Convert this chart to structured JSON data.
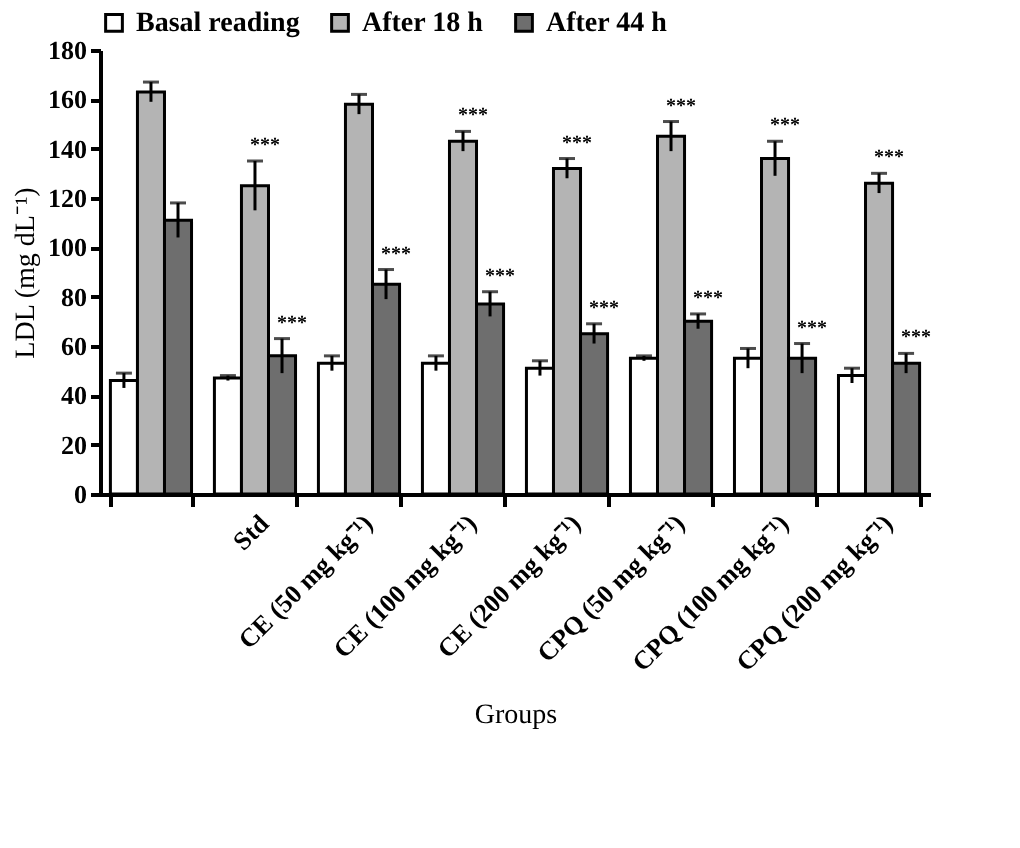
{
  "chart_data": {
    "type": "bar",
    "xlabel": "Groups",
    "ylabel": "LDL (mg dL⁻¹)",
    "categories": [
      null,
      "Std",
      "CE (50 mg kg⁻¹)",
      "CE (100 mg kg⁻¹)",
      "CE (200 mg kg⁻¹)",
      "CPQ (50 mg kg⁻¹)",
      "CPQ (100 mg kg⁻¹)",
      "CPQ (200 mg kg⁻¹)"
    ],
    "series": [
      {
        "name": "Basal reading",
        "color": "#ffffff",
        "values": [
          46,
          47,
          53,
          53,
          51,
          55,
          55,
          48
        ],
        "errors": [
          3,
          1,
          3,
          3,
          3,
          1,
          4,
          3
        ]
      },
      {
        "name": "After 18 h",
        "color": "#b4b4b4",
        "values": [
          163,
          125,
          158,
          143,
          132,
          145,
          136,
          126
        ],
        "errors": [
          4,
          10,
          4,
          4,
          4,
          6,
          7,
          4
        ]
      },
      {
        "name": "After 44 h",
        "color": "#6e6e6e",
        "values": [
          111,
          56,
          85,
          77,
          65,
          70,
          55,
          53
        ],
        "errors": [
          7,
          7,
          6,
          5,
          4,
          3,
          6,
          4
        ]
      }
    ],
    "annotations": [
      {
        "text": "***",
        "x": "Std",
        "y": 135
      },
      {
        "text": "***",
        "x": "Std",
        "y": 63
      },
      {
        "text": "***",
        "x": "CE (50 mg kg⁻¹)",
        "y": 91
      },
      {
        "text": "***",
        "x": "CE (100 mg kg⁻¹)",
        "y": 147
      },
      {
        "text": "***",
        "x": "CE (100 mg kg⁻¹)",
        "y": 82
      },
      {
        "text": "***",
        "x": "CE (200 mg kg⁻¹)",
        "y": 136
      },
      {
        "text": "***",
        "x": "CE (200 mg kg⁻¹)",
        "y": 69
      },
      {
        "text": "***",
        "x": "CPQ (50 mg kg⁻¹)",
        "y": 151
      },
      {
        "text": "***",
        "x": "CPQ (50 mg kg⁻¹)",
        "y": 73
      },
      {
        "text": "***",
        "x": "CPQ (100 mg kg⁻¹)",
        "y": 143
      },
      {
        "text": "***",
        "x": "CPQ (100 mg kg⁻¹)",
        "y": 61
      },
      {
        "text": "***",
        "x": "CPQ (200 mg kg⁻¹)",
        "y": 130
      },
      {
        "text": "***",
        "x": "CPQ (200 mg kg⁻¹)",
        "y": 57
      }
    ],
    "ylim": [
      0,
      180
    ],
    "yticks": [
      0,
      20,
      40,
      60,
      80,
      100,
      120,
      140,
      160,
      180
    ],
    "grid": false,
    "legend": "top"
  }
}
